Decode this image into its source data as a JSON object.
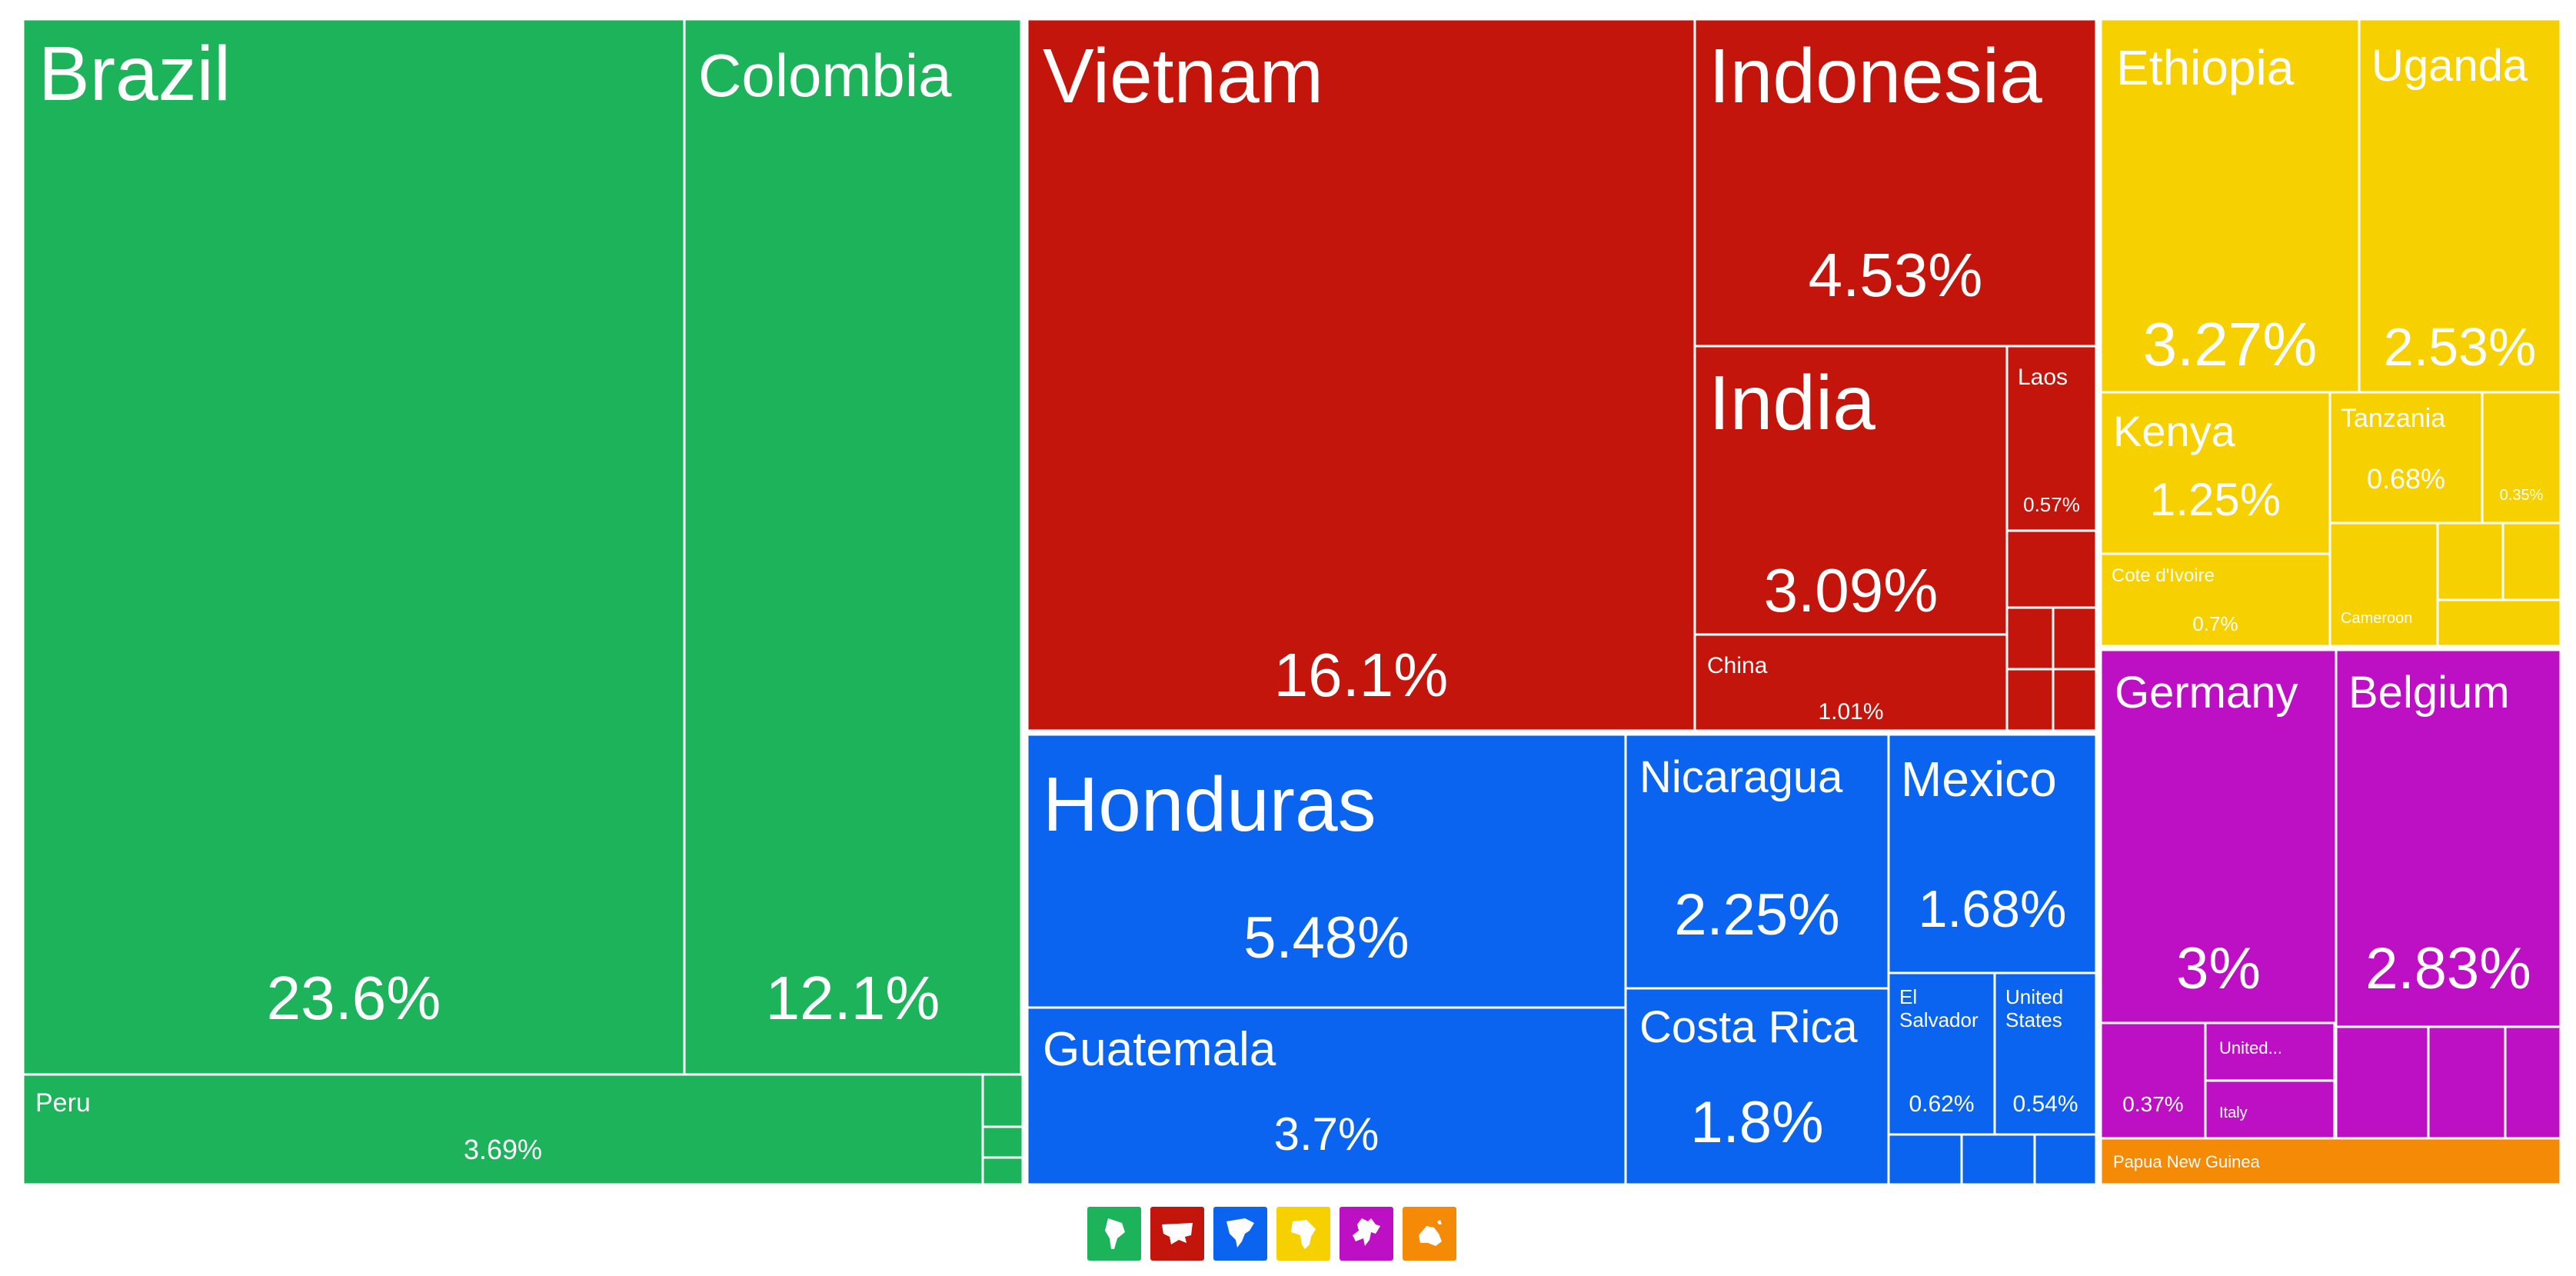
{
  "chart_data": {
    "type": "treemap",
    "colors": {
      "South America": "#1db35a",
      "Asia": "#c4150c",
      "North America": "#0a64f0",
      "Africa": "#f7d000",
      "Europe": "#bd10c4",
      "Oceania": "#f58a06"
    },
    "continents": [
      {
        "name": "South America",
        "items": [
          {
            "name": "Brazil",
            "value": 23.6,
            "label": "23.6%"
          },
          {
            "name": "Colombia",
            "value": 12.1,
            "label": "12.1%"
          },
          {
            "name": "Peru",
            "value": 3.69,
            "label": "3.69%"
          },
          {
            "name": "",
            "value": 0.3,
            "label": ""
          },
          {
            "name": "",
            "value": 0.2,
            "label": ""
          },
          {
            "name": "",
            "value": 0.1,
            "label": ""
          }
        ]
      },
      {
        "name": "Asia",
        "items": [
          {
            "name": "Vietnam",
            "value": 16.1,
            "label": "16.1%"
          },
          {
            "name": "Indonesia",
            "value": 4.53,
            "label": "4.53%"
          },
          {
            "name": "India",
            "value": 3.09,
            "label": "3.09%"
          },
          {
            "name": "China",
            "value": 1.01,
            "label": "1.01%"
          },
          {
            "name": "Laos",
            "value": 0.57,
            "label": "0.57%"
          },
          {
            "name": "",
            "value": 0.3,
            "label": ""
          },
          {
            "name": "",
            "value": 0.2,
            "label": ""
          },
          {
            "name": "",
            "value": 0.15,
            "label": ""
          },
          {
            "name": "",
            "value": 0.1,
            "label": ""
          },
          {
            "name": "",
            "value": 0.05,
            "label": ""
          }
        ]
      },
      {
        "name": "North America",
        "items": [
          {
            "name": "Honduras",
            "value": 5.48,
            "label": "5.48%"
          },
          {
            "name": "Guatemala",
            "value": 3.7,
            "label": "3.7%"
          },
          {
            "name": "Nicaragua",
            "value": 2.25,
            "label": "2.25%"
          },
          {
            "name": "Costa Rica",
            "value": 1.8,
            "label": "1.8%"
          },
          {
            "name": "Mexico",
            "value": 1.68,
            "label": "1.68%"
          },
          {
            "name": "El Salvador",
            "value": 0.62,
            "label": "0.62%"
          },
          {
            "name": "United States",
            "value": 0.54,
            "label": "0.54%"
          },
          {
            "name": "",
            "value": 0.2,
            "label": ""
          },
          {
            "name": "",
            "value": 0.15,
            "label": ""
          },
          {
            "name": "",
            "value": 0.1,
            "label": ""
          }
        ]
      },
      {
        "name": "Africa",
        "items": [
          {
            "name": "Ethiopia",
            "value": 3.27,
            "label": "3.27%"
          },
          {
            "name": "Uganda",
            "value": 2.53,
            "label": "2.53%"
          },
          {
            "name": "Kenya",
            "value": 1.25,
            "label": "1.25%"
          },
          {
            "name": "Tanzania",
            "value": 0.68,
            "label": "0.68%"
          },
          {
            "name": "Cote d'Ivoire",
            "value": 0.7,
            "label": "0.7%"
          },
          {
            "name": "",
            "value": 0.35,
            "label": "0.35%"
          },
          {
            "name": "Cameroon",
            "value": 0.3,
            "label": ""
          },
          {
            "name": "",
            "value": 0.2,
            "label": ""
          },
          {
            "name": "",
            "value": 0.15,
            "label": ""
          },
          {
            "name": "",
            "value": 0.1,
            "label": ""
          }
        ]
      },
      {
        "name": "Europe",
        "items": [
          {
            "name": "Germany",
            "value": 3.0,
            "label": "3%"
          },
          {
            "name": "Belgium",
            "value": 2.83,
            "label": "2.83%"
          },
          {
            "name": "",
            "value": 0.37,
            "label": "0.37%"
          },
          {
            "name": "United...",
            "value": 0.3,
            "label": ""
          },
          {
            "name": "Italy",
            "value": 0.3,
            "label": ""
          },
          {
            "name": "",
            "value": 0.2,
            "label": ""
          },
          {
            "name": "",
            "value": 0.15,
            "label": ""
          },
          {
            "name": "",
            "value": 0.1,
            "label": ""
          }
        ]
      },
      {
        "name": "Oceania",
        "items": [
          {
            "name": "Papua New Guinea",
            "value": 0.3,
            "label": ""
          }
        ]
      }
    ]
  },
  "legend": [
    {
      "continent": "South America",
      "icon": "south-america-icon"
    },
    {
      "continent": "Asia",
      "icon": "asia-icon"
    },
    {
      "continent": "North America",
      "icon": "north-america-icon"
    },
    {
      "continent": "Africa",
      "icon": "africa-icon"
    },
    {
      "continent": "Europe",
      "icon": "europe-icon"
    },
    {
      "continent": "Oceania",
      "icon": "oceania-icon"
    }
  ]
}
